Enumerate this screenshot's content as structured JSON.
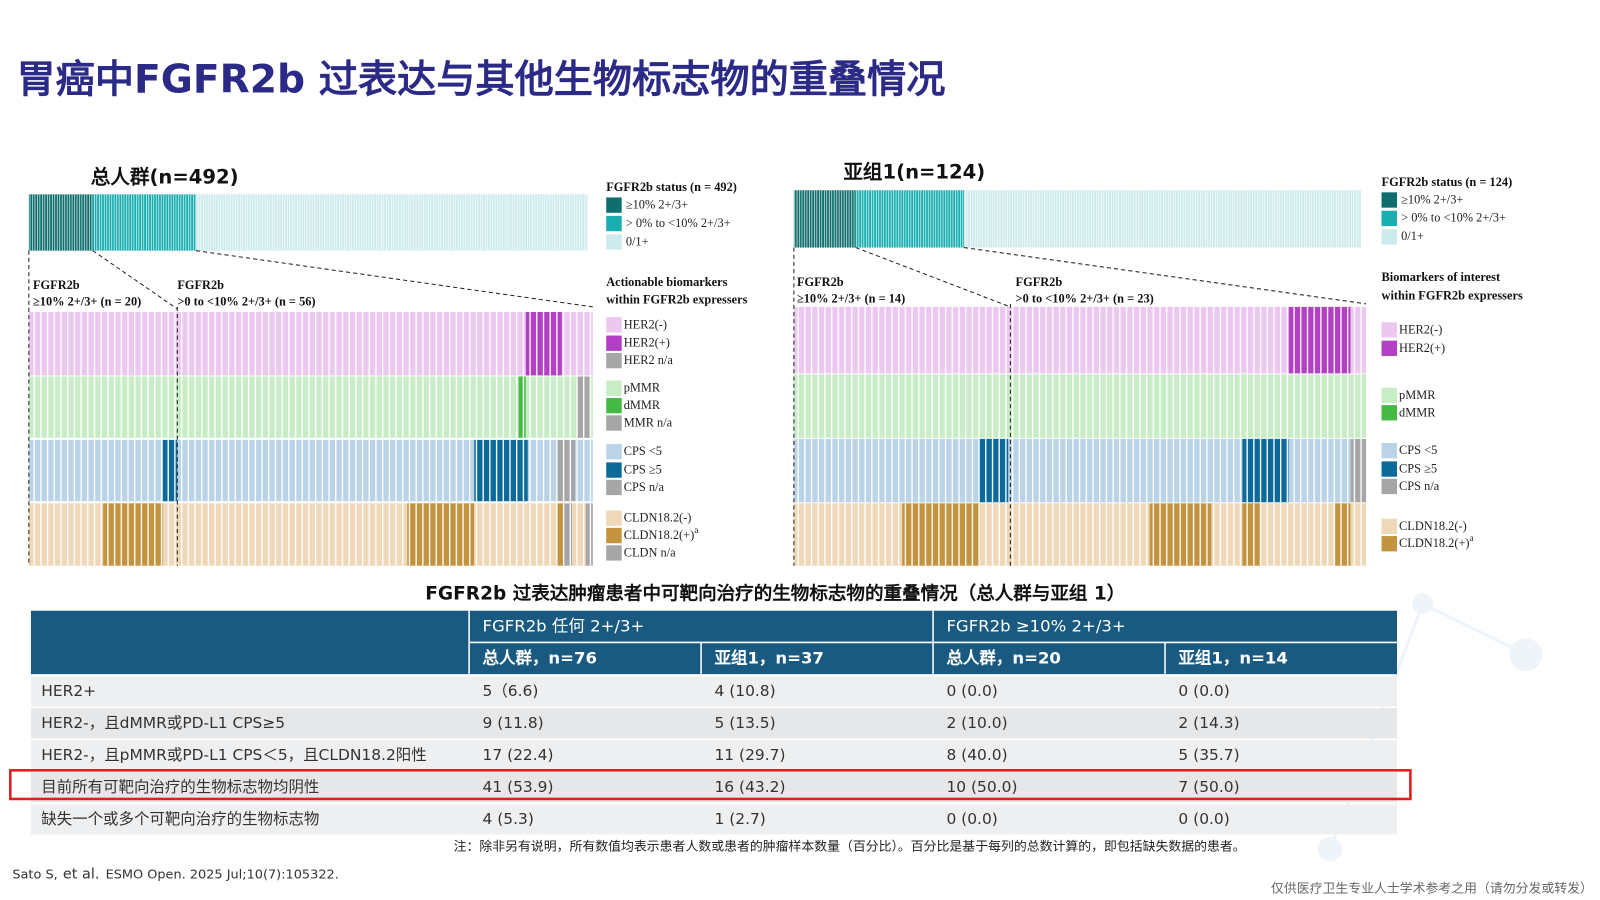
{
  "title": "胃癌中FGFR2b 过表达与其他生物标志物的重叠情况",
  "panels": [
    {
      "title": "总人群(n=492)",
      "status_title": "FGFR2b status (n = 492)",
      "status_legend": [
        {
          "label": "≥10% 2+/3+",
          "color": "#0f6e6e"
        },
        {
          "label": "> 0% to <10% 2+/3+",
          "color": "#19aeb0"
        },
        {
          "label": "0/1+",
          "color": "#cdeaec"
        }
      ],
      "group_labels": [
        {
          "line1": "FGFR2b",
          "line2": "≥10% 2+/3+ (n = 20)"
        },
        {
          "line1": "FGFR2b",
          "line2": ">0 to <10% 2+/3+ (n = 56)"
        }
      ],
      "biomarker_title": [
        "Actionable biomarkers",
        "within FGFR2b expressers"
      ],
      "biomarker_legend": [
        [
          {
            "label": "HER2(-)",
            "color": "#ecc8f1"
          },
          {
            "label": "HER2(+)",
            "color": "#b23fc4"
          },
          {
            "label": "HER2 n/a",
            "color": "#a6a6a6"
          }
        ],
        [
          {
            "label": "pMMR",
            "color": "#c8edc6"
          },
          {
            "label": "dMMR",
            "color": "#44b944"
          },
          {
            "label": "MMR n/a",
            "color": "#a6a6a6"
          }
        ],
        [
          {
            "label": "CPS <5",
            "color": "#bad3e7"
          },
          {
            "label": "CPS ≥5",
            "color": "#0b6a9a"
          },
          {
            "label": "CPS n/a",
            "color": "#a6a6a6"
          }
        ],
        [
          {
            "label": "CLDN18.2(-)",
            "color": "#eed8b7"
          },
          {
            "label": "CLDN18.2(+)",
            "sup": "a",
            "color": "#c39340"
          },
          {
            "label": "CLDN n/a",
            "color": "#a6a6a6"
          }
        ]
      ]
    },
    {
      "title": "亚组1(n=124)",
      "status_title": "FGFR2b status (n = 124)",
      "status_legend": [
        {
          "label": "≥10% 2+/3+",
          "color": "#0f6e6e"
        },
        {
          "label": "> 0% to <10% 2+/3+",
          "color": "#19aeb0"
        },
        {
          "label": "0/1+",
          "color": "#cdeaec"
        }
      ],
      "group_labels": [
        {
          "line1": "FGFR2b",
          "line2": "≥10% 2+/3+ (n = 14)"
        },
        {
          "line1": "FGFR2b",
          "line2": ">0 to <10% 2+/3+ (n = 23)"
        }
      ],
      "biomarker_title": [
        "Biomarkers of interest",
        "within FGFR2b expressers"
      ],
      "biomarker_legend": [
        [
          {
            "label": "HER2(-)",
            "color": "#ecc8f1"
          },
          {
            "label": "HER2(+)",
            "color": "#b23fc4"
          }
        ],
        [
          {
            "label": "pMMR",
            "color": "#c8edc6"
          },
          {
            "label": "dMMR",
            "color": "#44b944"
          }
        ],
        [
          {
            "label": "CPS <5",
            "color": "#bad3e7"
          },
          {
            "label": "CPS ≥5",
            "color": "#0b6a9a"
          },
          {
            "label": "CPS n/a",
            "color": "#a6a6a6"
          }
        ],
        [
          {
            "label": "CLDN18.2(-)",
            "color": "#eed8b7"
          },
          {
            "label": "CLDN18.2(+)",
            "sup": "a",
            "color": "#c39340"
          }
        ]
      ]
    }
  ],
  "table": {
    "title": "FGFR2b 过表达肿瘤患者中可靶向治疗的生物标志物的重叠情况（总人群与亚组 1）",
    "group_headers": [
      "FGFR2b 任何 2+/3+",
      "FGFR2b ≥10% 2+/3+"
    ],
    "subheaders": [
      "总人群，n=76",
      "亚组1，n=37",
      "总人群，n=20",
      "亚组1，n=14"
    ],
    "rows": [
      [
        "HER2+",
        "5（6.6)",
        "4 (10.8)",
        "0 (0.0)",
        "0 (0.0)"
      ],
      [
        "HER2-，且dMMR或PD-L1 CPS≥5",
        "9 (11.8)",
        "5 (13.5)",
        "2 (10.0)",
        "2 (14.3)"
      ],
      [
        "HER2-，且pMMR或PD-L1 CPS＜5，且CLDN18.2阳性",
        "17 (22.4)",
        "11 (29.7)",
        "8 (40.0)",
        "5 (35.7)"
      ],
      [
        "目前所有可靶向治疗的生物标志物均阴性",
        "41 (53.9)",
        "16 (43.2)",
        "10 (50.0)",
        "7 (50.0)"
      ],
      [
        "缺失一个或多个可靶向治疗的生物标志物",
        "4 (5.3)",
        "1 (2.7)",
        "0 (0.0)",
        "0 (0.0)"
      ]
    ]
  },
  "note": "注：除非另有说明，所有数值均表示患者人数或患者的肿瘤样本数量（百分比）。百分比是基于每列的总数计算的，即包括缺失数据的患者。",
  "citation": {
    "authors": "Sato S,",
    "etal": "et al.",
    "source": "ESMO Open. 2025 Jul;10(7):105322."
  },
  "footer": "仅供医疗卫生专业人士学术参考之用（请勿分发或转发）"
}
